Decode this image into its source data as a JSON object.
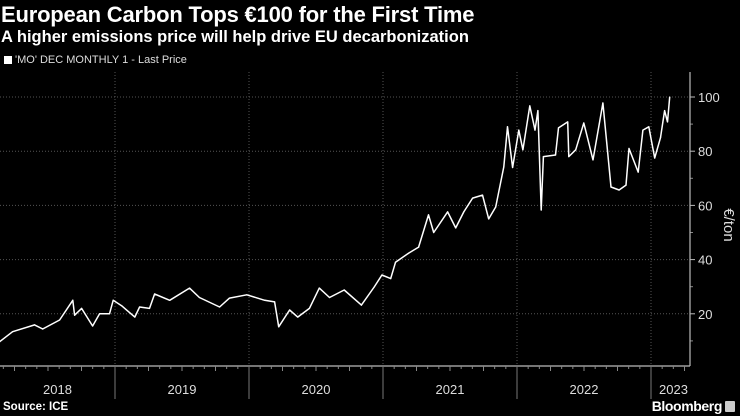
{
  "title": "European Carbon Tops €100 for the First Time",
  "subtitle": "A higher emissions price will help drive EU decarbonization",
  "source": "Source: ICE",
  "brand": "Bloomberg",
  "colors": {
    "background": "#000000",
    "line": "#ffffff",
    "grid": "#555555",
    "text": "#ffffff"
  },
  "chart_data": {
    "type": "line",
    "legend": {
      "position": "top-left",
      "entries": [
        "'MO' DEC MONTHLY 1 - Last Price"
      ]
    },
    "ylabel": "€/ton",
    "xlabel": "",
    "ylim": [
      0,
      108
    ],
    "yticks": [
      20,
      40,
      60,
      80,
      100
    ],
    "xticks": [
      "2018",
      "2019",
      "2020",
      "2021",
      "2022",
      "2023"
    ],
    "y_axis_side": "right",
    "grid": true,
    "series": [
      {
        "name": "'MO' DEC MONTHLY 1 - Last Price",
        "points": [
          [
            "2018-02-21",
            9.7
          ],
          [
            "2018-03-28",
            13.4
          ],
          [
            "2018-05-27",
            15.9
          ],
          [
            "2018-06-18",
            14.4
          ],
          [
            "2018-08-03",
            17.7
          ],
          [
            "2018-09-08",
            25.0
          ],
          [
            "2018-09-13",
            19.5
          ],
          [
            "2018-10-02",
            22.0
          ],
          [
            "2018-11-01",
            15.5
          ],
          [
            "2018-11-20",
            20.0
          ],
          [
            "2018-12-17",
            20.0
          ],
          [
            "2018-12-27",
            25.0
          ],
          [
            "2019-01-19",
            23.0
          ],
          [
            "2019-02-24",
            18.8
          ],
          [
            "2019-03-09",
            22.5
          ],
          [
            "2019-04-05",
            22.0
          ],
          [
            "2019-04-19",
            27.3
          ],
          [
            "2019-05-30",
            25.0
          ],
          [
            "2019-07-23",
            29.5
          ],
          [
            "2019-08-19",
            26.0
          ],
          [
            "2019-10-13",
            22.5
          ],
          [
            "2019-11-09",
            25.8
          ],
          [
            "2019-12-26",
            27.0
          ],
          [
            "2020-02-13",
            25.0
          ],
          [
            "2020-03-11",
            24.4
          ],
          [
            "2020-03-22",
            15.2
          ],
          [
            "2020-04-21",
            21.4
          ],
          [
            "2020-05-13",
            18.8
          ],
          [
            "2020-06-14",
            22.0
          ],
          [
            "2020-07-11",
            29.5
          ],
          [
            "2020-08-08",
            26.0
          ],
          [
            "2020-09-17",
            28.8
          ],
          [
            "2020-11-03",
            23.2
          ],
          [
            "2020-12-08",
            29.9
          ],
          [
            "2020-12-29",
            34.3
          ],
          [
            "2021-01-22",
            33.0
          ],
          [
            "2021-02-04",
            39.0
          ],
          [
            "2021-03-12",
            42.4
          ],
          [
            "2021-04-08",
            44.6
          ],
          [
            "2021-05-05",
            56.5
          ],
          [
            "2021-05-19",
            50.0
          ],
          [
            "2021-06-26",
            57.6
          ],
          [
            "2021-07-18",
            51.7
          ],
          [
            "2021-08-09",
            57.6
          ],
          [
            "2021-09-02",
            62.7
          ],
          [
            "2021-09-29",
            63.8
          ],
          [
            "2021-10-16",
            55.0
          ],
          [
            "2021-11-04",
            59.4
          ],
          [
            "2021-11-26",
            74.2
          ],
          [
            "2021-12-06",
            89.0
          ],
          [
            "2021-12-20",
            74.0
          ],
          [
            "2022-01-06",
            87.8
          ],
          [
            "2022-01-17",
            80.5
          ],
          [
            "2022-02-05",
            96.7
          ],
          [
            "2022-02-19",
            87.8
          ],
          [
            "2022-02-27",
            95.0
          ],
          [
            "2022-03-08",
            58.3
          ],
          [
            "2022-03-14",
            78.0
          ],
          [
            "2022-04-16",
            78.6
          ],
          [
            "2022-04-24",
            88.6
          ],
          [
            "2022-05-19",
            90.8
          ],
          [
            "2022-05-22",
            78.0
          ],
          [
            "2022-06-10",
            80.5
          ],
          [
            "2022-07-02",
            90.4
          ],
          [
            "2022-07-27",
            76.8
          ],
          [
            "2022-08-23",
            97.8
          ],
          [
            "2022-09-14",
            66.8
          ],
          [
            "2022-10-06",
            65.7
          ],
          [
            "2022-10-25",
            67.5
          ],
          [
            "2022-11-02",
            81.0
          ],
          [
            "2022-11-27",
            72.3
          ],
          [
            "2022-12-10",
            87.8
          ],
          [
            "2022-12-26",
            89.0
          ],
          [
            "2023-01-11",
            77.5
          ],
          [
            "2023-01-27",
            85.0
          ],
          [
            "2023-02-07",
            95.0
          ],
          [
            "2023-02-15",
            90.8
          ],
          [
            "2023-02-21",
            100.0
          ]
        ]
      }
    ]
  }
}
